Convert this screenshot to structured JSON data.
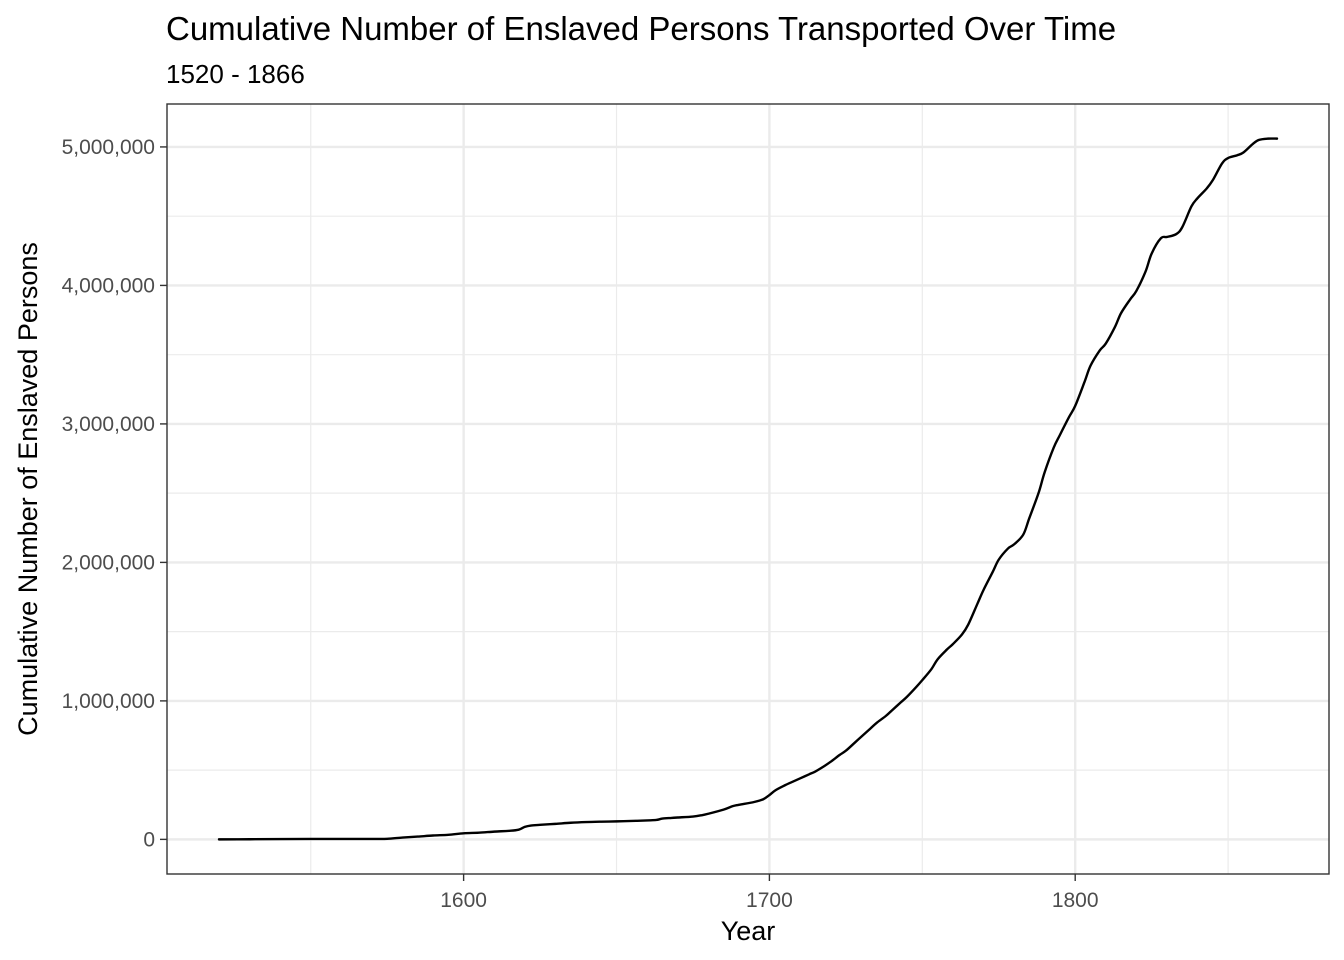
{
  "chart_data": {
    "type": "line",
    "title": "Cumulative Number of Enslaved Persons Transported Over Time",
    "subtitle": "1520 - 1866",
    "xlabel": "Year",
    "ylabel": "Cumulative Number of Enslaved Persons",
    "xlim": [
      1503,
      1883
    ],
    "ylim": [
      -250000,
      5310000
    ],
    "x_major_ticks": [
      1600,
      1700,
      1800
    ],
    "x_tick_labels": [
      "1600",
      "1700",
      "1800"
    ],
    "x_minor_ticks": [
      1550,
      1650,
      1750,
      1850
    ],
    "y_major_ticks": [
      0,
      1000000,
      2000000,
      3000000,
      4000000,
      5000000
    ],
    "y_tick_labels": [
      "0",
      "1,000,000",
      "2,000,000",
      "3,000,000",
      "4,000,000",
      "5,000,000"
    ],
    "y_minor_ticks": [
      500000,
      1500000,
      2500000,
      3500000,
      4500000
    ],
    "grid": true,
    "line_color": "#000000",
    "series": [
      {
        "x": [
          1520,
          1530,
          1540,
          1550,
          1560,
          1570,
          1575,
          1580,
          1585,
          1590,
          1595,
          1600,
          1605,
          1610,
          1615,
          1618,
          1620,
          1622,
          1625,
          1630,
          1635,
          1640,
          1645,
          1650,
          1655,
          1660,
          1663,
          1665,
          1668,
          1670,
          1675,
          1678,
          1680,
          1685,
          1688,
          1690,
          1695,
          1698,
          1700,
          1702,
          1705,
          1708,
          1710,
          1713,
          1715,
          1718,
          1720,
          1723,
          1725,
          1728,
          1730,
          1733,
          1735,
          1738,
          1740,
          1743,
          1745,
          1748,
          1750,
          1753,
          1755,
          1758,
          1760,
          1763,
          1765,
          1768,
          1770,
          1773,
          1775,
          1778,
          1780,
          1783,
          1785,
          1788,
          1790,
          1793,
          1795,
          1798,
          1800,
          1803,
          1805,
          1808,
          1810,
          1813,
          1815,
          1818,
          1820,
          1823,
          1825,
          1828,
          1830,
          1833,
          1835,
          1838,
          1840,
          1843,
          1845,
          1848,
          1850,
          1853,
          1855,
          1858,
          1860,
          1863,
          1866
        ],
        "values": [
          0,
          1000,
          2000,
          3000,
          3000,
          3000,
          4000,
          13000,
          20000,
          28000,
          33000,
          44000,
          48000,
          56000,
          62000,
          70000,
          90000,
          100000,
          105000,
          112000,
          120000,
          125000,
          128000,
          130000,
          133000,
          137000,
          140000,
          150000,
          155000,
          158000,
          165000,
          175000,
          185000,
          215000,
          240000,
          250000,
          270000,
          290000,
          320000,
          355000,
          390000,
          420000,
          440000,
          470000,
          490000,
          530000,
          560000,
          610000,
          640000,
          700000,
          740000,
          800000,
          840000,
          890000,
          930000,
          990000,
          1030000,
          1100000,
          1150000,
          1230000,
          1300000,
          1370000,
          1410000,
          1480000,
          1550000,
          1700000,
          1800000,
          1930000,
          2020000,
          2100000,
          2130000,
          2200000,
          2320000,
          2500000,
          2650000,
          2830000,
          2920000,
          3050000,
          3130000,
          3300000,
          3420000,
          3530000,
          3580000,
          3700000,
          3800000,
          3900000,
          3960000,
          4100000,
          4230000,
          4340000,
          4350000,
          4370000,
          4420000,
          4570000,
          4630000,
          4700000,
          4760000,
          4880000,
          4920000,
          4940000,
          4960000,
          5020000,
          5050000,
          5060000,
          5060000
        ]
      }
    ]
  }
}
